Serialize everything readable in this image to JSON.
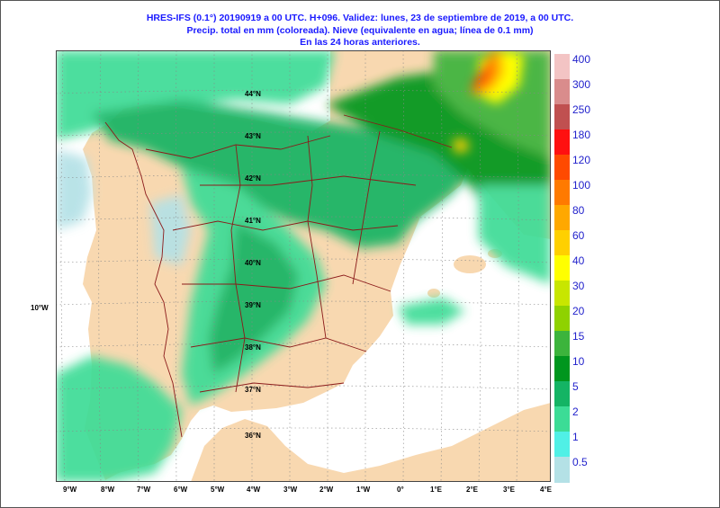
{
  "header": {
    "line1": "HRES-IFS (0.1°) 20190919 a 00 UTC.  H+096. Validez: lunes, 23 de septiembre de 2019,  a  00 UTC.",
    "line2": "Precip. total en mm (coloreada). Nieve (equivalente en agua; línea de 0.1 mm)",
    "line3": "En las 24 horas anteriores."
  },
  "legend": {
    "levels": [
      "400",
      "300",
      "250",
      "180",
      "120",
      "100",
      "80",
      "60",
      "40",
      "30",
      "20",
      "15",
      "10",
      "5",
      "2",
      "1",
      "0.5"
    ],
    "colors": [
      "#f3c4c4",
      "#d98c8c",
      "#c05050",
      "#ff1010",
      "#ff4a00",
      "#ff7a00",
      "#ffa800",
      "#ffd000",
      "#ffff00",
      "#c8e600",
      "#8fd200",
      "#3cb43c",
      "#00961e",
      "#14b464",
      "#3cdc96",
      "#50f0e6",
      "#b4e1e6"
    ]
  },
  "axes": {
    "lon_labels": [
      "9°W",
      "8°W",
      "7°W",
      "6°W",
      "5°W",
      "4°W",
      "3°W",
      "2°W",
      "1°W",
      "0°",
      "1°E",
      "2°E",
      "3°E",
      "4°E"
    ],
    "lat_labels": [
      "44°N",
      "43°N",
      "42°N",
      "41°N",
      "40°N",
      "39°N",
      "38°N",
      "37°N",
      "36°N"
    ],
    "side_label": "10°W"
  },
  "colors": {
    "land": "#f8d8b0",
    "sea": "#ffffff",
    "borders": "#8b1a1a",
    "title": "#1a1aff"
  }
}
